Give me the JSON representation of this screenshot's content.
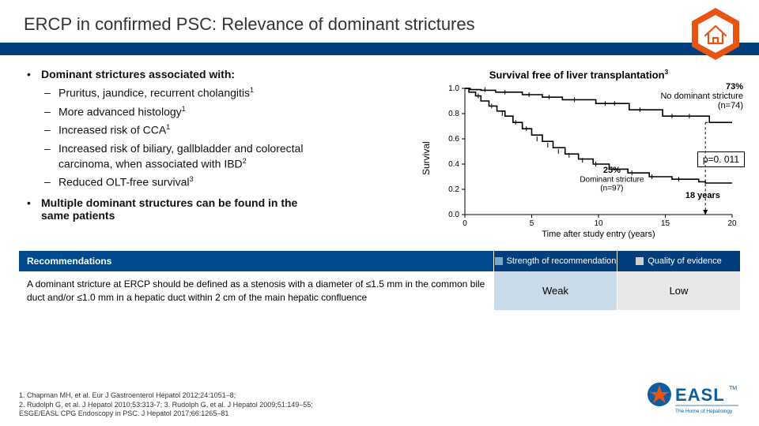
{
  "title": "ERCP in confirmed PSC: Relevance of dominant strictures",
  "bullet1": {
    "text": "Dominant strictures associated with:"
  },
  "sub": {
    "a": "Pruritus, jaundice, recurrent cholangitis",
    "b": "More advanced histology",
    "c": "Increased risk of CCA",
    "d1": "Increased risk of biliary, gallbladder and colorectal",
    "d2": "carcinoma, when associated with IBD",
    "e": "Reduced OLT-free survival"
  },
  "bullet2": {
    "l1": "Multiple dominant structures can be found in the",
    "l2": "same patients"
  },
  "chart": {
    "title": "Survival free of liver transplantation",
    "ylabel": "Survival",
    "xlabel": "Time after study entry (years)",
    "yticks": [
      "0.0",
      "0.2",
      "0.4",
      "0.6",
      "0.8",
      "1.0"
    ],
    "xticks": [
      "0",
      "5",
      "10",
      "15",
      "20"
    ],
    "ann73a": "73%",
    "ann73b": "No dominant stricture",
    "ann73c": "(n=74)",
    "ann25a": "25%",
    "ann25b": "Dominant stricture",
    "ann25c": "(n=97)",
    "ann18": "18 years",
    "pval": "p=0. 011",
    "xlim": [
      0,
      20
    ],
    "ylim": [
      0,
      1
    ],
    "series1_type": "step",
    "series1": [
      [
        0,
        1.0
      ],
      [
        0.4,
        0.99
      ],
      [
        1.0,
        0.99
      ],
      [
        1.2,
        0.985
      ],
      [
        2.0,
        0.985
      ],
      [
        2.3,
        0.97
      ],
      [
        4.0,
        0.97
      ],
      [
        4.3,
        0.95
      ],
      [
        5.5,
        0.95
      ],
      [
        5.8,
        0.93
      ],
      [
        7.0,
        0.93
      ],
      [
        7.3,
        0.91
      ],
      [
        9.5,
        0.91
      ],
      [
        9.8,
        0.88
      ],
      [
        12.0,
        0.88
      ],
      [
        12.3,
        0.83
      ],
      [
        14.5,
        0.83
      ],
      [
        14.8,
        0.78
      ],
      [
        18.0,
        0.78
      ],
      [
        18.3,
        0.73
      ],
      [
        20,
        0.73
      ]
    ],
    "censor1": [
      [
        1.5,
        0.99
      ],
      [
        3.0,
        0.97
      ],
      [
        4.8,
        0.95
      ],
      [
        6.3,
        0.93
      ],
      [
        8.2,
        0.91
      ],
      [
        10.5,
        0.88
      ],
      [
        11.2,
        0.88
      ],
      [
        13.1,
        0.83
      ],
      [
        15.5,
        0.78
      ],
      [
        16.8,
        0.78
      ]
    ],
    "series2": [
      [
        0,
        1.0
      ],
      [
        0.3,
        0.97
      ],
      [
        0.8,
        0.94
      ],
      [
        1.2,
        0.9
      ],
      [
        1.8,
        0.86
      ],
      [
        2.4,
        0.82
      ],
      [
        3.0,
        0.78
      ],
      [
        3.6,
        0.73
      ],
      [
        4.3,
        0.68
      ],
      [
        5.0,
        0.63
      ],
      [
        5.8,
        0.58
      ],
      [
        6.6,
        0.53
      ],
      [
        7.5,
        0.48
      ],
      [
        8.5,
        0.44
      ],
      [
        9.6,
        0.4
      ],
      [
        10.8,
        0.36
      ],
      [
        12.2,
        0.33
      ],
      [
        13.8,
        0.3
      ],
      [
        15.5,
        0.28
      ],
      [
        17.5,
        0.26
      ],
      [
        18.0,
        0.25
      ],
      [
        20,
        0.25
      ]
    ],
    "censor2": [
      [
        1.0,
        0.94
      ],
      [
        2.0,
        0.86
      ],
      [
        2.8,
        0.8
      ],
      [
        3.8,
        0.73
      ],
      [
        4.6,
        0.68
      ],
      [
        5.4,
        0.6
      ],
      [
        6.2,
        0.55
      ],
      [
        7.0,
        0.5
      ],
      [
        7.8,
        0.47
      ],
      [
        8.8,
        0.43
      ],
      [
        9.8,
        0.4
      ],
      [
        11.0,
        0.36
      ],
      [
        12.5,
        0.33
      ],
      [
        14.0,
        0.3
      ],
      [
        16.0,
        0.28
      ]
    ],
    "dash_y": 0.73,
    "dash_x": 18,
    "plot_color": "#000000",
    "bg": "#ffffff"
  },
  "rec": {
    "head1": "Recommendations",
    "head2": "Strength of recommendation",
    "head3": "Quality of evidence",
    "body": "A dominant stricture at ERCP should be defined as a stenosis with a diameter of ≤1.5 mm in the common bile duct and/or ≤1.0 mm in a hepatic duct within 2 cm of the main hepatic confluence",
    "c2": "Weak",
    "c3": "Low"
  },
  "refs": {
    "l1": "1. Chapman MH, et al. Eur J Gastroenterol Hepatol 2012;24:1051–8;",
    "l2": "2. Rudolph G, et al. J Hepatol 2010;53:313-7; 3. Rudolph G, et al. J Hepatol 2009;51:149–55;",
    "l3": "ESGE/EASL CPG Endoscopy in PSC. J Hepatol 2017;66:1265–81"
  },
  "logo": {
    "text": "EASL",
    "sub": "The Home of Hepatology"
  }
}
